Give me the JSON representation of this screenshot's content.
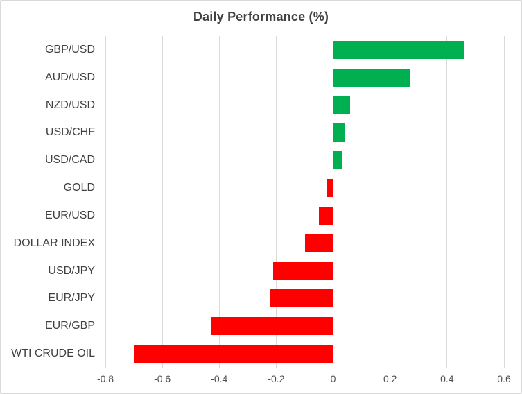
{
  "chart": {
    "title": "Daily Performance (%)"
  },
  "chart_data": {
    "type": "bar",
    "orientation": "horizontal",
    "title": "Daily Performance (%)",
    "categories": [
      "GBP/USD",
      "AUD/USD",
      "NZD/USD",
      "USD/CHF",
      "USD/CAD",
      "GOLD",
      "EUR/USD",
      "DOLLAR INDEX",
      "USD/JPY",
      "EUR/JPY",
      "EUR/GBP",
      "WTI CRUDE OIL"
    ],
    "values": [
      0.46,
      0.27,
      0.06,
      0.04,
      0.03,
      -0.02,
      -0.05,
      -0.1,
      -0.21,
      -0.22,
      -0.43,
      -0.7
    ],
    "xlabel": "",
    "ylabel": "",
    "xlim": [
      -0.8,
      0.6
    ],
    "xticks": [
      -0.8,
      -0.6,
      -0.4,
      -0.2,
      0,
      0.2,
      0.4,
      0.6
    ],
    "xtick_labels": [
      "-0.8",
      "-0.6",
      "-0.4",
      "-0.2",
      "0",
      "0.2",
      "0.4",
      "0.6"
    ],
    "grid": true,
    "legend": false,
    "colors": {
      "positive": "#00B050",
      "negative": "#FF0000",
      "gridline": "#D9D9D9",
      "border": "#D9D9D9",
      "background": "#FFFFFF",
      "title_text": "#404040",
      "label_text": "#404040",
      "tick_text": "#4D4D4D"
    }
  }
}
